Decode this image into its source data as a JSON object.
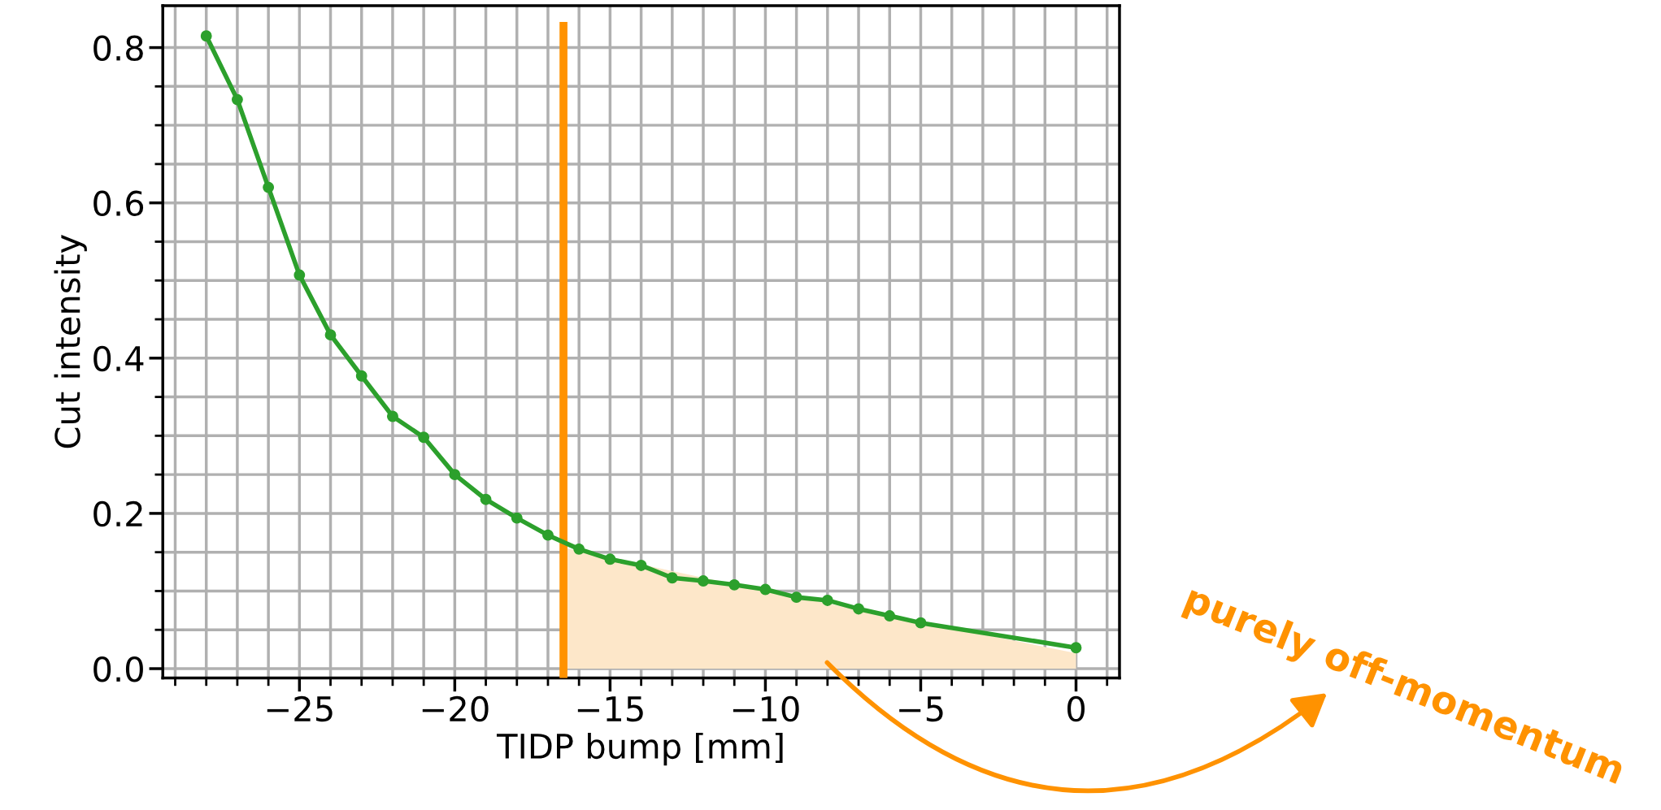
{
  "chart_data": {
    "type": "line",
    "xlabel": "TIDP bump [mm]",
    "ylabel": "Cut intensity",
    "series": [
      {
        "type": "area",
        "color": "#fde7c9",
        "x": [
          -16.4,
          -10,
          0
        ],
        "values": [
          0.155,
          0.1,
          0.02
        ]
      },
      {
        "color": "#2ca02c",
        "marker": "circle",
        "line_style": "solid",
        "x": [
          -28,
          -27,
          -26,
          -25,
          -24,
          -23,
          -22,
          -21,
          -20,
          -19,
          -18,
          -17,
          -16,
          -15,
          -14,
          -13,
          -12,
          -11,
          -10,
          -9,
          -8,
          -7,
          -6,
          -5,
          0
        ],
        "values": [
          0.815,
          0.733,
          0.62,
          0.507,
          0.43,
          0.377,
          0.325,
          0.298,
          0.25,
          0.218,
          0.194,
          0.172,
          0.154,
          0.141,
          0.133,
          0.117,
          0.113,
          0.108,
          0.102,
          0.092,
          0.088,
          0.077,
          0.068,
          0.059,
          0.027
        ]
      }
    ],
    "ref_lines": [
      {
        "axis": "x",
        "value": -16.5,
        "color": "#ff9200"
      }
    ],
    "annotations": [
      "purely off-momentum"
    ],
    "xlim": [
      -29.4,
      1.4
    ],
    "ylim": [
      -0.012,
      0.854
    ],
    "xticks": [
      {
        "value": -29,
        "label": null
      },
      {
        "value": -28,
        "label": null
      },
      {
        "value": -27,
        "label": null
      },
      {
        "value": -26,
        "label": null
      },
      {
        "value": -25,
        "label": "−25"
      },
      {
        "value": -24,
        "label": null
      },
      {
        "value": -23,
        "label": null
      },
      {
        "value": -22,
        "label": null
      },
      {
        "value": -21,
        "label": null
      },
      {
        "value": -20,
        "label": "−20"
      },
      {
        "value": -19,
        "label": null
      },
      {
        "value": -18,
        "label": null
      },
      {
        "value": -17,
        "label": null
      },
      {
        "value": -16,
        "label": null
      },
      {
        "value": -15,
        "label": "−15"
      },
      {
        "value": -14,
        "label": null
      },
      {
        "value": -13,
        "label": null
      },
      {
        "value": -12,
        "label": null
      },
      {
        "value": -11,
        "label": null
      },
      {
        "value": -10,
        "label": "−10"
      },
      {
        "value": -9,
        "label": null
      },
      {
        "value": -8,
        "label": null
      },
      {
        "value": -7,
        "label": null
      },
      {
        "value": -6,
        "label": null
      },
      {
        "value": -5,
        "label": "−5"
      },
      {
        "value": -4,
        "label": null
      },
      {
        "value": -3,
        "label": null
      },
      {
        "value": -2,
        "label": null
      },
      {
        "value": -1,
        "label": null
      },
      {
        "value": 0,
        "label": "0"
      },
      {
        "value": 1,
        "label": null
      }
    ],
    "yticks": [
      {
        "value": 0,
        "label": "0.0"
      },
      {
        "value": 0.05,
        "label": null
      },
      {
        "value": 0.1,
        "label": null
      },
      {
        "value": 0.15,
        "label": null
      },
      {
        "value": 0.2,
        "label": "0.2"
      },
      {
        "value": 0.25,
        "label": null
      },
      {
        "value": 0.3,
        "label": null
      },
      {
        "value": 0.35,
        "label": null
      },
      {
        "value": 0.4,
        "label": "0.4"
      },
      {
        "value": 0.45,
        "label": null
      },
      {
        "value": 0.5,
        "label": null
      },
      {
        "value": 0.55,
        "label": null
      },
      {
        "value": 0.6,
        "label": "0.6"
      },
      {
        "value": 0.65,
        "label": null
      },
      {
        "value": 0.7,
        "label": null
      },
      {
        "value": 0.75,
        "label": null
      },
      {
        "value": 0.8,
        "label": "0.8"
      }
    ],
    "grid": true
  }
}
